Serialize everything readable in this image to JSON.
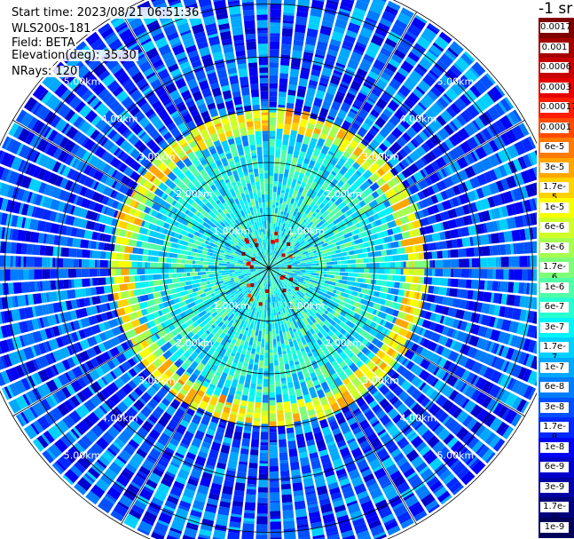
{
  "info": {
    "start_time": "Start time: 2023/08/21 06:51:36",
    "instrument": "WLS200s-181",
    "field": "Field: BETA",
    "elevation": "Elevation(deg): 35.30",
    "nrays": "NRays: 120"
  },
  "colorbar": {
    "title": "-1 sr",
    "entries": [
      {
        "label": "0.0017",
        "color": "#7f0000"
      },
      {
        "label": "0.001",
        "color": "#a50000"
      },
      {
        "label": "0.0006",
        "color": "#c80000"
      },
      {
        "label": "0.0003",
        "color": "#e50000"
      },
      {
        "label": "0.00017",
        "color": "#ff1d00"
      },
      {
        "label": "0.0001",
        "color": "#ff4a00"
      },
      {
        "label": "6e-5",
        "color": "#ff7a00"
      },
      {
        "label": "3e-5",
        "color": "#ffa600"
      },
      {
        "label": "1.7e-5",
        "color": "#ffd200"
      },
      {
        "label": "1e-5",
        "color": "#f8ff00"
      },
      {
        "label": "6e-6",
        "color": "#d0ff27"
      },
      {
        "label": "3e-6",
        "color": "#a6ff50"
      },
      {
        "label": "1.7e-6",
        "color": "#7dff7a"
      },
      {
        "label": "1e-6",
        "color": "#50ffa6"
      },
      {
        "label": "6e-7",
        "color": "#27ffd0"
      },
      {
        "label": "3e-7",
        "color": "#00f4f8"
      },
      {
        "label": "1.7e-7",
        "color": "#00d0ff"
      },
      {
        "label": "1e-7",
        "color": "#00a8ff"
      },
      {
        "label": "6e-8",
        "color": "#007cff"
      },
      {
        "label": "3e-8",
        "color": "#0050ff"
      },
      {
        "label": "1.7e-8",
        "color": "#0028ff"
      },
      {
        "label": "1e-8",
        "color": "#0000f4"
      },
      {
        "label": "6e-9",
        "color": "#0000cc"
      },
      {
        "label": "3e-9",
        "color": "#0000a4"
      },
      {
        "label": "1.7e-9",
        "color": "#00007c"
      },
      {
        "label": "1e-9",
        "color": "#000058"
      }
    ]
  },
  "chart_data": {
    "type": "heatmap",
    "projection": "polar PPI scan (top-down view)",
    "field": "BETA",
    "elevation_deg": 35.3,
    "nrays": 120,
    "range_rings_km": [
      1.0,
      2.0,
      3.0,
      4.0,
      5.0
    ],
    "ring_labels": [
      "1.00km",
      "2.00km",
      "3.00km",
      "4.00km",
      "5.00km"
    ],
    "spokes_deg": [
      0,
      30,
      60,
      90,
      120,
      150,
      180,
      210,
      240,
      270,
      300,
      330
    ],
    "max_range_km": 5.6,
    "color_scale": "log",
    "value_range": [
      1e-09,
      0.0017
    ],
    "features": [
      {
        "name": "inner background",
        "range_km": [
          0.0,
          2.4
        ],
        "typical_value": 3e-07
      },
      {
        "name": "bright ring",
        "range_km": [
          2.6,
          3.0
        ],
        "typical_value": 1e-05
      },
      {
        "name": "outer background",
        "range_km": [
          3.0,
          5.6
        ],
        "typical_value": 3e-08
      },
      {
        "name": "near-center hot spots",
        "range_km": [
          0.3,
          0.7
        ],
        "typical_value": 0.0003
      }
    ]
  }
}
